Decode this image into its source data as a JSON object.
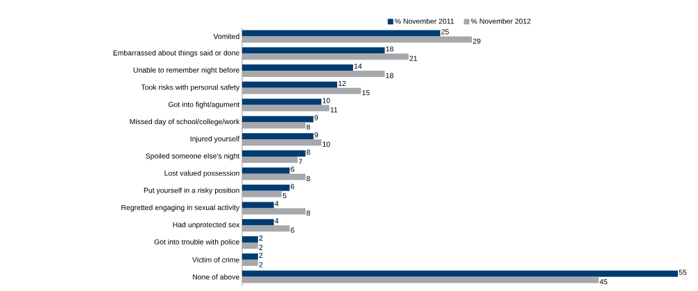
{
  "chart_data": {
    "type": "bar",
    "orientation": "horizontal",
    "data_labels": true,
    "legend": "top",
    "categories": [
      "Vomited",
      "Embarrassed about things said or done",
      "Unable to remember night before",
      "Took risks with personal safety",
      "Got into fight/agument",
      "Missed day of school/college/work",
      "Injured yourself",
      "Spoiled someone else's night",
      "Lost valued possession",
      "Put yourself in a risky position",
      "Regretted engaging in sexual activity",
      "Had unprotected sex",
      "Got into trouble with police",
      "Victim of crime",
      "None of above"
    ],
    "series": [
      {
        "name": "% November 2011",
        "color": "#003b71",
        "values": [
          25,
          18,
          14,
          12,
          10,
          9,
          9,
          8,
          6,
          6,
          4,
          4,
          2,
          2,
          55
        ]
      },
      {
        "name": "% November 2012",
        "color": "#a6a8ab",
        "values": [
          29,
          21,
          18,
          15,
          11,
          8,
          10,
          7,
          8,
          5,
          8,
          6,
          2,
          2,
          45
        ]
      }
    ]
  }
}
